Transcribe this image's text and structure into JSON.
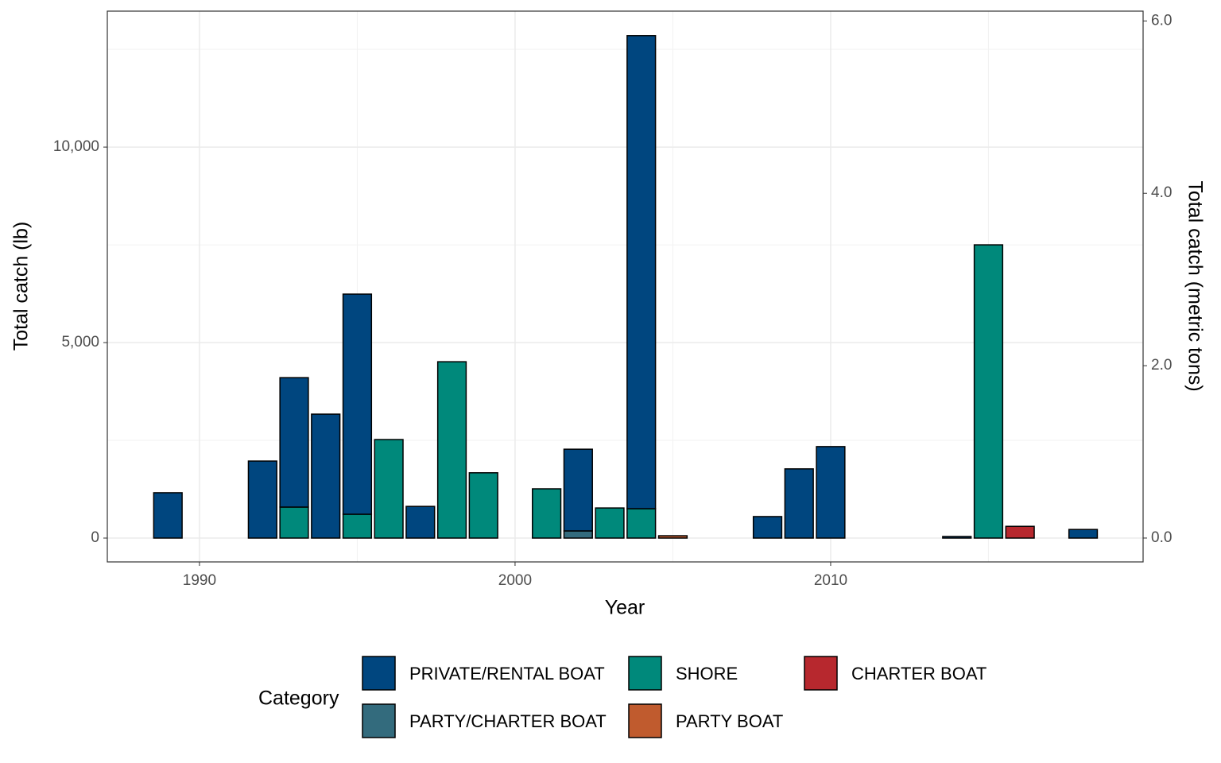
{
  "chart_data": {
    "type": "bar",
    "stacked": true,
    "x_label": "Year",
    "y_label": "Total catch (lb)",
    "y2_label": "Total catch (metric tons)",
    "legend_title": "Category",
    "x": [
      1989,
      1990,
      1991,
      1992,
      1993,
      1994,
      1995,
      1996,
      1997,
      1998,
      1999,
      2000,
      2001,
      2002,
      2003,
      2004,
      2005,
      2006,
      2007,
      2008,
      2009,
      2010,
      2011,
      2012,
      2013,
      2014,
      2015,
      2016,
      2017,
      2018
    ],
    "series": [
      {
        "name": "PRIVATE/RENTAL BOAT",
        "color": "#00467f",
        "values": [
          1160,
          0,
          0,
          1970,
          3310,
          3170,
          5630,
          null,
          810,
          null,
          null,
          0,
          null,
          2090,
          null,
          12100,
          null,
          0,
          0,
          550,
          1770,
          2340,
          0,
          0,
          0,
          40,
          null,
          null,
          0,
          220
        ]
      },
      {
        "name": "PARTY/CHARTER BOAT",
        "color": "#336b7d",
        "values": [
          null,
          null,
          null,
          null,
          null,
          null,
          null,
          null,
          null,
          null,
          null,
          null,
          null,
          183,
          null,
          null,
          null,
          null,
          null,
          null,
          null,
          null,
          null,
          null,
          null,
          null,
          null,
          null,
          null,
          null
        ]
      },
      {
        "name": "SHORE",
        "color": "#00897b",
        "values": [
          null,
          null,
          null,
          null,
          793,
          null,
          610,
          2520,
          null,
          4510,
          1670,
          null,
          1260,
          null,
          770,
          752,
          null,
          null,
          null,
          null,
          null,
          null,
          null,
          null,
          null,
          null,
          7500,
          null,
          null,
          null
        ]
      },
      {
        "name": "PARTY BOAT",
        "color": "#c05b2e",
        "values": [
          null,
          null,
          null,
          null,
          null,
          null,
          null,
          null,
          null,
          null,
          null,
          null,
          null,
          null,
          null,
          null,
          60,
          null,
          null,
          null,
          null,
          null,
          null,
          null,
          null,
          null,
          null,
          null,
          null,
          null
        ]
      },
      {
        "name": "CHARTER BOAT",
        "color": "#b7282e",
        "values": [
          null,
          null,
          null,
          null,
          null,
          null,
          null,
          null,
          null,
          null,
          null,
          null,
          null,
          null,
          null,
          null,
          null,
          null,
          null,
          null,
          null,
          null,
          null,
          null,
          null,
          null,
          null,
          300,
          null,
          null
        ]
      }
    ],
    "xlim": [
      1987.08,
      2019.9
    ],
    "xticks": [
      1990,
      2000,
      2010
    ],
    "ylim": [
      -610,
      13478
    ],
    "yticks": [
      0,
      {
        "value": 5000,
        "label": "5,000"
      },
      {
        "value": 10000,
        "label": "10,000"
      }
    ],
    "y2lim": [
      -0.277,
      6.114
    ],
    "y2ticks": [
      {
        "value": 0,
        "label": "0.0"
      },
      {
        "value": 2,
        "label": "2.0"
      },
      {
        "value": 4,
        "label": "4.0"
      },
      {
        "value": 6,
        "label": "6.0"
      }
    ],
    "grid": true
  }
}
